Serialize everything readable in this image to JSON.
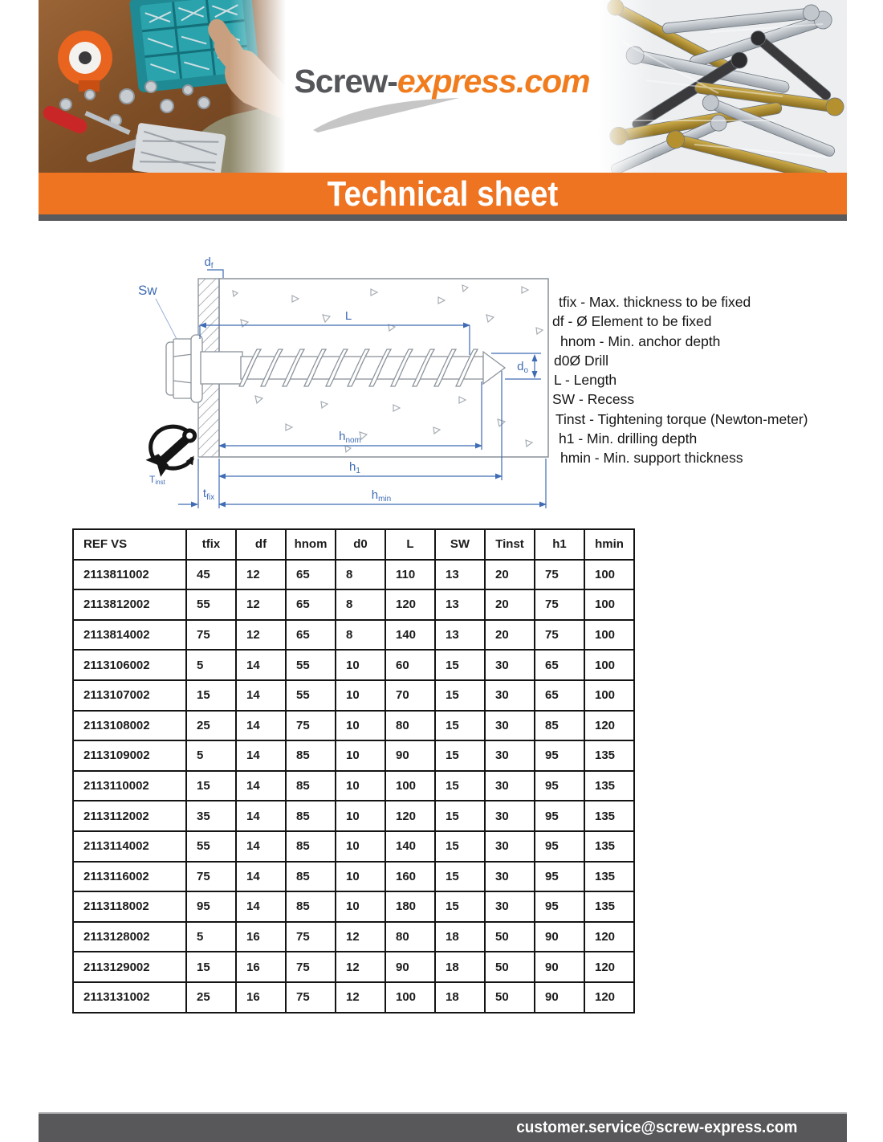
{
  "colors": {
    "accent_orange": "#ee7421",
    "dark_gray": "#58585a",
    "dimension_blue": "#3f6cb5",
    "logo_gray": "#54565a",
    "logo_orange": "#f07c1e"
  },
  "logo": {
    "part1": "Screw-",
    "part2": "express.com"
  },
  "banner": {
    "title": "Technical sheet"
  },
  "diagram": {
    "labels": {
      "df": {
        "main": "d",
        "sub": "f"
      },
      "sw": {
        "main": "Sw"
      },
      "l": {
        "main": "L"
      },
      "do": {
        "main": "d",
        "sub": "o"
      },
      "hnom": {
        "main": "h",
        "sub": "nom"
      },
      "h1": {
        "main": "h",
        "sub": "1"
      },
      "hmin": {
        "main": "h",
        "sub": "min"
      },
      "tfix": {
        "main": "t",
        "sub": "fix"
      },
      "tinst": {
        "main": "T",
        "sub": "inst"
      }
    }
  },
  "legend": {
    "lines": [
      "tfix - Max. thickness to be fixed",
      "df - Ø Element to be fixed",
      "hnom - Min. anchor depth",
      "d0Ø Drill",
      "L - Length",
      "SW - Recess",
      "Tinst - Tightening torque (Newton-meter)",
      "h1 - Min. drilling depth",
      "hmin - Min. support thickness"
    ]
  },
  "table": {
    "headers": [
      "REF VS",
      "tfix",
      "df",
      "hnom",
      "d0",
      "L",
      "SW",
      "Tinst",
      "h1",
      "hmin"
    ],
    "rows": [
      [
        "2113811002",
        "45",
        "12",
        "65",
        "8",
        "110",
        "13",
        "20",
        "75",
        "100"
      ],
      [
        "2113812002",
        "55",
        "12",
        "65",
        "8",
        "120",
        "13",
        "20",
        "75",
        "100"
      ],
      [
        "2113814002",
        "75",
        "12",
        "65",
        "8",
        "140",
        "13",
        "20",
        "75",
        "100"
      ],
      [
        "2113106002",
        "5",
        "14",
        "55",
        "10",
        "60",
        "15",
        "30",
        "65",
        "100"
      ],
      [
        "2113107002",
        "15",
        "14",
        "55",
        "10",
        "70",
        "15",
        "30",
        "65",
        "100"
      ],
      [
        "2113108002",
        "25",
        "14",
        "75",
        "10",
        "80",
        "15",
        "30",
        "85",
        "120"
      ],
      [
        "2113109002",
        "5",
        "14",
        "85",
        "10",
        "90",
        "15",
        "30",
        "95",
        "135"
      ],
      [
        "2113110002",
        "15",
        "14",
        "85",
        "10",
        "100",
        "15",
        "30",
        "95",
        "135"
      ],
      [
        "2113112002",
        "35",
        "14",
        "85",
        "10",
        "120",
        "15",
        "30",
        "95",
        "135"
      ],
      [
        "2113114002",
        "55",
        "14",
        "85",
        "10",
        "140",
        "15",
        "30",
        "95",
        "135"
      ],
      [
        "2113116002",
        "75",
        "14",
        "85",
        "10",
        "160",
        "15",
        "30",
        "95",
        "135"
      ],
      [
        "2113118002",
        "95",
        "14",
        "85",
        "10",
        "180",
        "15",
        "30",
        "95",
        "135"
      ],
      [
        "2113128002",
        "5",
        "16",
        "75",
        "12",
        "80",
        "18",
        "50",
        "90",
        "120"
      ],
      [
        "2113129002",
        "15",
        "16",
        "75",
        "12",
        "90",
        "18",
        "50",
        "90",
        "120"
      ],
      [
        "2113131002",
        "25",
        "16",
        "75",
        "12",
        "100",
        "18",
        "50",
        "90",
        "120"
      ]
    ]
  },
  "footer": {
    "email": "customer.service@screw-express.com"
  }
}
